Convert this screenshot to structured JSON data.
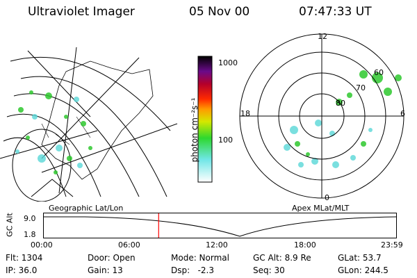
{
  "header": {
    "title": "Ultraviolet Imager",
    "date": "05 Nov 00",
    "time": "07:47:33 UT"
  },
  "colorbar": {
    "tick_1000": "1000",
    "tick_100": "100",
    "unit_label": "photon cm⁻²s⁻¹"
  },
  "left_panel": {
    "caption": "Geographic Lat/Lon"
  },
  "right_panel": {
    "caption": "Apex MLat/MLT",
    "mlt_12": "12",
    "mlt_18": "18",
    "mlt_6": "6",
    "mlt_0": "0",
    "lat_60": "60",
    "lat_70": "70",
    "lat_80": "80"
  },
  "timeline": {
    "ylabel": "GC Alt",
    "y_top": "9.0",
    "y_bottom": "1.8",
    "ticks": [
      "00:00",
      "06:00",
      "12:00",
      "18:00",
      "23:59"
    ],
    "current_fraction": 0.326
  },
  "status": {
    "flt": "Flt: 1304",
    "ip": "IP: 36.0",
    "door": "Door: Open",
    "gain": "Gain: 13",
    "mode": "Mode: Normal",
    "dsp": "Dsp:   -2.3",
    "gcalt": "GC Alt: 8.9 Re",
    "seq": "Seq: 30",
    "glat": "GLat: 53.7",
    "glon": "GLon: 244.5"
  },
  "colors": {
    "current_marker": "#ff0000",
    "aurora_green": "#2ec82e",
    "aurora_cyan": "#5ad8d8"
  }
}
